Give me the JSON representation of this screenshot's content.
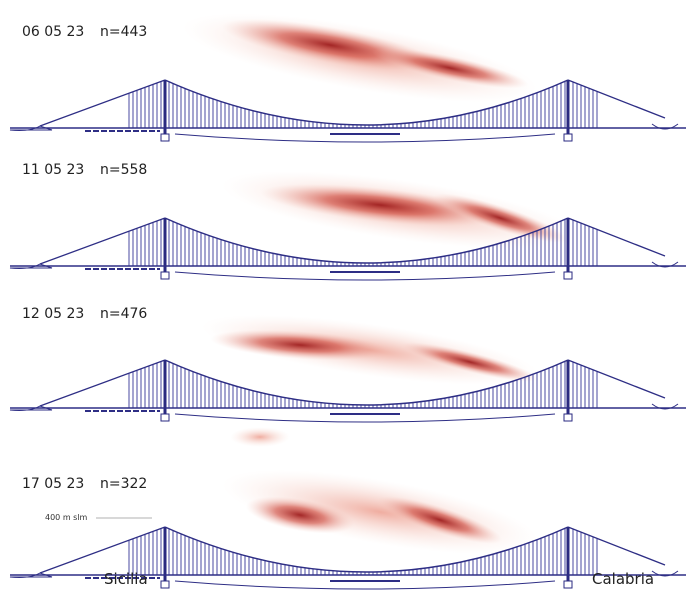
{
  "panels": [
    {
      "date": "06 05 23",
      "count": "n=443"
    },
    {
      "date": "11 05 23",
      "count": "n=558"
    },
    {
      "date": "12 05 23",
      "count": "n=476"
    },
    {
      "date": "17 05 23",
      "count": "n=322"
    }
  ],
  "altitude_label": "400 m slm",
  "left_label": "Sicilia",
  "right_label": "Calabria"
}
